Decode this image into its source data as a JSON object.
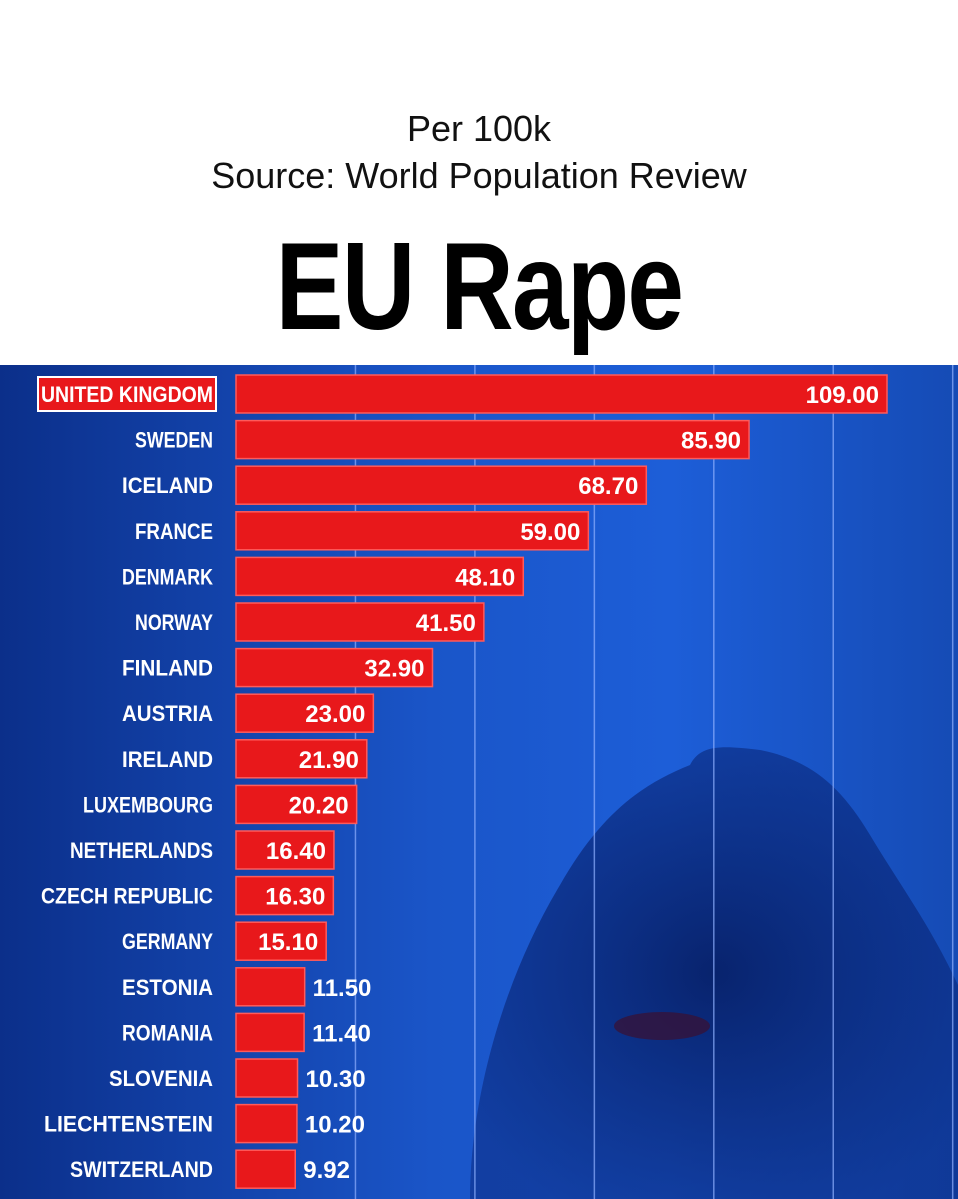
{
  "header": {
    "subtitle_line1": "Per 100k",
    "subtitle_line2": "Source: World Population Review",
    "title": "EU Rape"
  },
  "colors": {
    "bar": "#e8181b",
    "bar_border": "#ff5a5a",
    "background": "#1a55c8",
    "gridline": "#8fb0ff"
  },
  "chart_data": {
    "type": "bar",
    "orientation": "horizontal",
    "title": "EU Rape",
    "subtitle": "Per 100k",
    "source": "Source: World Population Review",
    "categories": [
      "UNITED KINGDOM",
      "SWEDEN",
      "ICELAND",
      "FRANCE",
      "DENMARK",
      "NORWAY",
      "FINLAND",
      "AUSTRIA",
      "IRELAND",
      "LUXEMBOURG",
      "NETHERLANDS",
      "CZECH REPUBLIC",
      "GERMANY",
      "ESTONIA",
      "ROMANIA",
      "SLOVENIA",
      "LIECHTENSTEIN",
      "SWITZERLAND"
    ],
    "values": [
      109.0,
      85.9,
      68.7,
      59.0,
      48.1,
      41.5,
      32.9,
      23.0,
      21.9,
      20.2,
      16.4,
      16.3,
      15.1,
      11.5,
      11.4,
      10.3,
      10.2,
      9.92
    ],
    "value_labels": [
      "109.00",
      "85.90",
      "68.70",
      "59.00",
      "48.10",
      "41.50",
      "32.90",
      "23.00",
      "21.90",
      "20.20",
      "16.40",
      "16.30",
      "15.10",
      "11.50",
      "11.40",
      "10.30",
      "10.20",
      "9.92"
    ],
    "highlighted": "UNITED KINGDOM",
    "grid": true,
    "xlim": [
      0,
      120
    ]
  }
}
